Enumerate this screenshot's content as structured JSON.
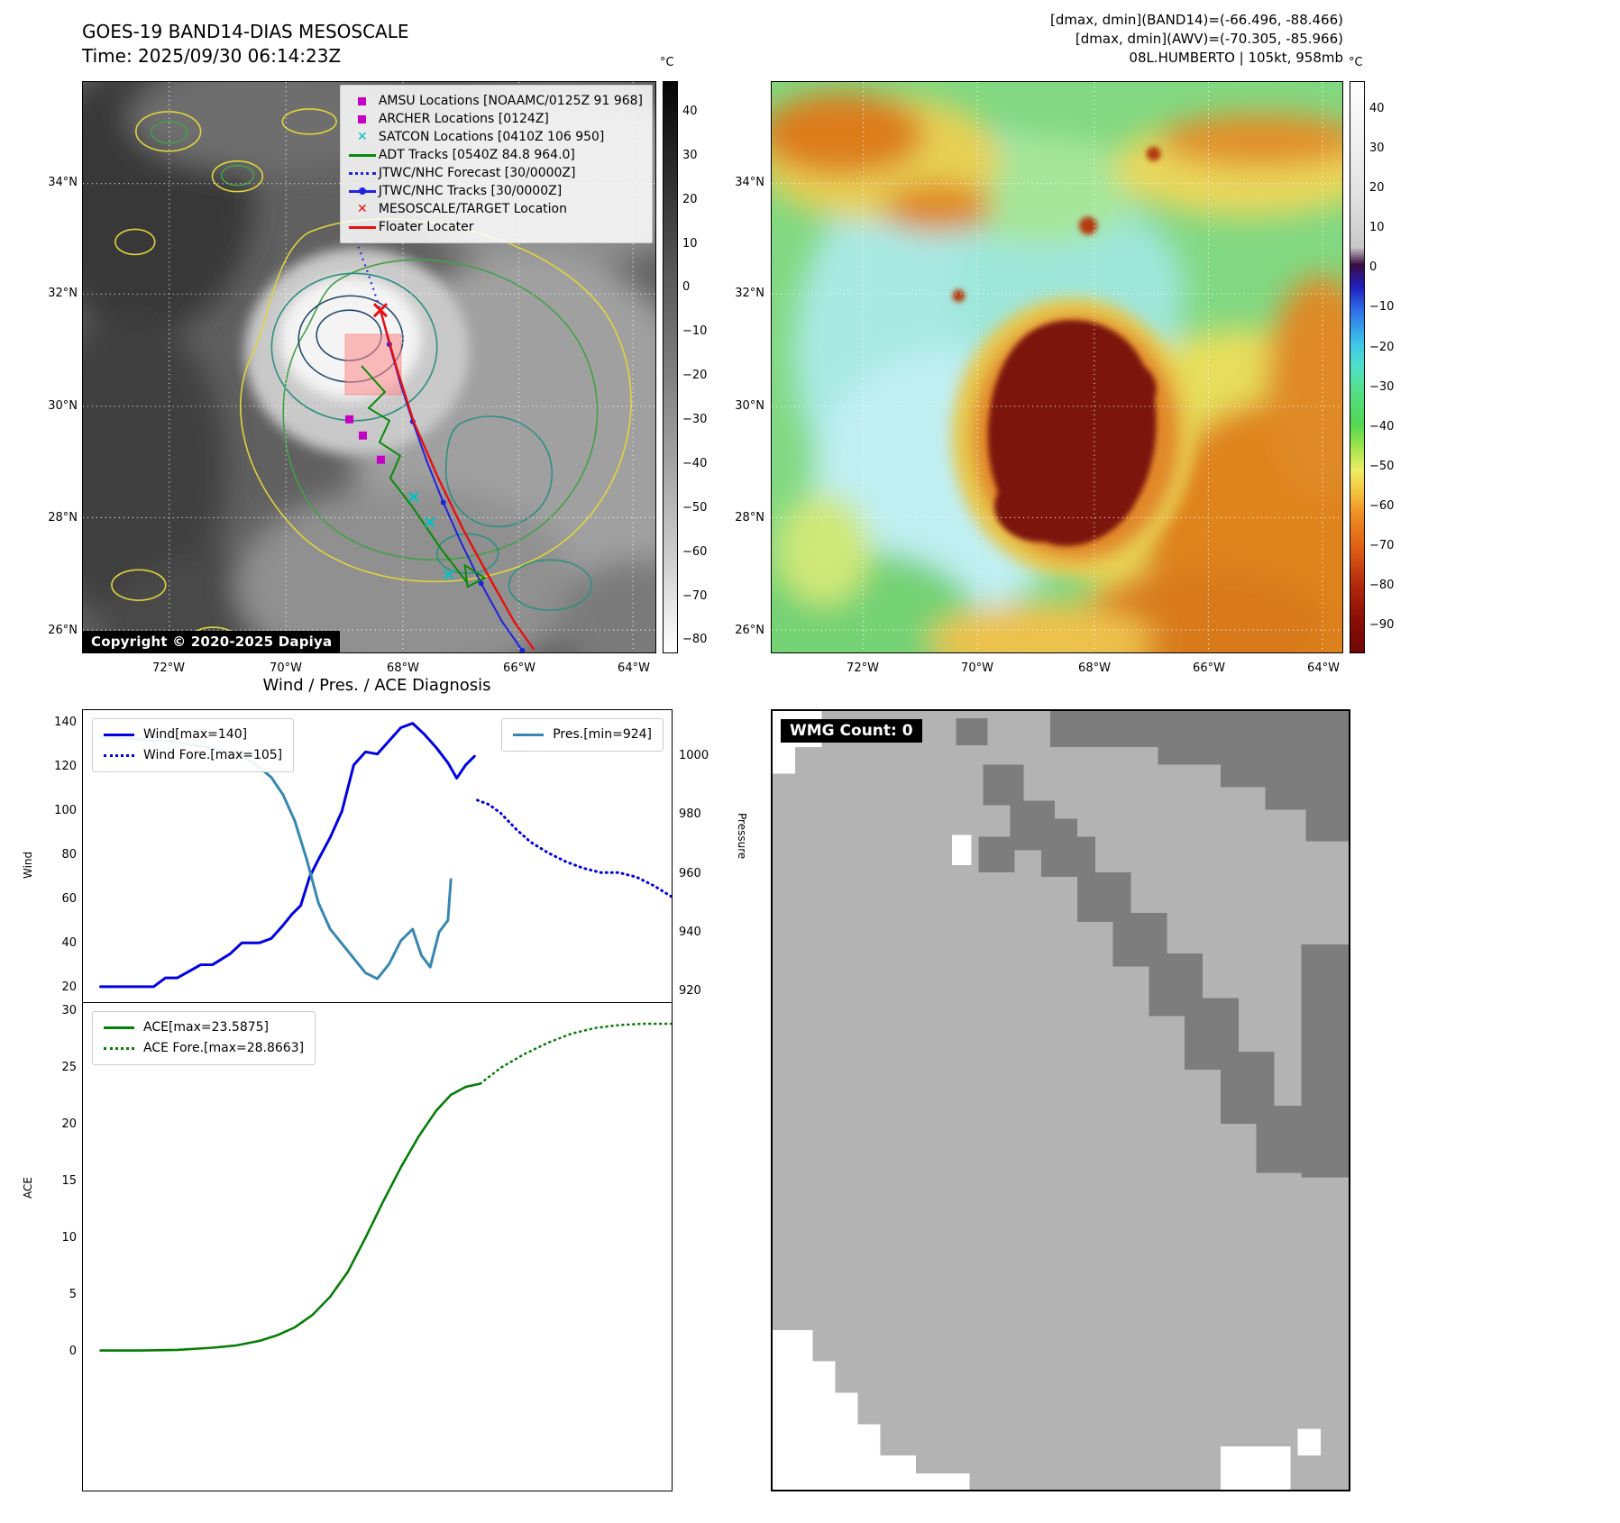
{
  "panel_band14": {
    "title_line1": "GOES-19 BAND14-DIAS MESOSCALE",
    "title_line2": "Time: 2025/09/30 06:14:23Z",
    "copyright": "Copyright © 2020-2025 Dapiya",
    "colorbar_unit": "°C",
    "colorbar_ticks": [
      "40",
      "30",
      "20",
      "10",
      "0",
      "−10",
      "−20",
      "−30",
      "−40",
      "−50",
      "−60",
      "−70",
      "−80"
    ],
    "lat_ticks": [
      "34°N",
      "32°N",
      "30°N",
      "28°N",
      "26°N"
    ],
    "lon_ticks": [
      "72°W",
      "70°W",
      "68°W",
      "66°W",
      "64°W"
    ],
    "legend": [
      {
        "marker": "magenta-square",
        "label": "AMSU Locations [NOAAMC/0125Z 91 968]"
      },
      {
        "marker": "magenta-square",
        "label": "ARCHER Locations [0124Z]"
      },
      {
        "marker": "cyan-x",
        "label": "SATCON Locations [0410Z 106 950]"
      },
      {
        "marker": "green-line",
        "label": "ADT Tracks [0540Z 84.8 964.0]"
      },
      {
        "marker": "blue-dotted-line",
        "label": "JTWC/NHC Forecast [30/0000Z]"
      },
      {
        "marker": "blue-line-dot",
        "label": "JTWC/NHC Tracks [30/0000Z]"
      },
      {
        "marker": "red-x",
        "label": "MESOSCALE/TARGET Location"
      },
      {
        "marker": "red-line",
        "label": "Floater Locater"
      }
    ]
  },
  "panel_awv": {
    "header_line1": "[dmax, dmin](BAND14)=(-66.496, -88.466)",
    "header_line2": "[dmax, dmin](AWV)=(-70.305, -85.966)",
    "header_line3": "08L.HUMBERTO | 105kt, 958mb",
    "colorbar_unit": "°C",
    "colorbar_ticks": [
      "40",
      "30",
      "20",
      "10",
      "0",
      "−10",
      "−20",
      "−30",
      "−40",
      "−50",
      "−60",
      "−70",
      "−80",
      "−90"
    ],
    "lat_ticks": [
      "34°N",
      "32°N",
      "30°N",
      "28°N",
      "26°N"
    ],
    "lon_ticks": [
      "72°W",
      "70°W",
      "68°W",
      "66°W",
      "64°W"
    ]
  },
  "panel_wmg": {
    "label": "WMG Count: 0"
  },
  "chart_data": [
    {
      "type": "line",
      "title": "Wind / Pres. / ACE Diagnosis",
      "ylabel_left": "Wind",
      "ylabel_right": "Pressure",
      "xlim": [
        0,
        100
      ],
      "ylim_left": [
        13,
        146
      ],
      "ylim_right": [
        916,
        1016
      ],
      "yticks_left": [
        140,
        120,
        100,
        80,
        60,
        40,
        20
      ],
      "yticks_right": [
        1000,
        980,
        960,
        940,
        920
      ],
      "grid": false,
      "legend_positions": [
        "upper-left",
        "upper-right"
      ],
      "series": [
        {
          "name": "Wind[max=140]",
          "color": "#0000e0",
          "style": "solid",
          "axis": "left",
          "width": 3,
          "x": [
            3,
            8,
            12,
            14,
            16,
            18,
            20,
            22,
            25,
            27,
            30,
            32,
            34,
            35.5,
            37,
            38.5,
            40,
            42,
            44,
            46,
            48,
            50,
            52,
            54,
            56,
            58,
            60,
            62,
            63.5,
            65,
            66.5
          ],
          "y": [
            20,
            20,
            20,
            24,
            24,
            27,
            30,
            30,
            35,
            40,
            40,
            42,
            48,
            53,
            57,
            70,
            78,
            88,
            100,
            121,
            127,
            126,
            132,
            138,
            140,
            135,
            129,
            122,
            115,
            121,
            125
          ]
        },
        {
          "name": "Wind Fore.[max=105]",
          "color": "#0000e0",
          "style": "dotted",
          "axis": "left",
          "width": 3,
          "x": [
            67,
            69,
            71,
            73.5,
            76,
            79,
            82,
            85,
            88,
            91,
            94,
            97,
            100
          ],
          "y": [
            105,
            103,
            99,
            92,
            86,
            81,
            77,
            74,
            72,
            72,
            70,
            66,
            61
          ]
        },
        {
          "name": "Pres.[min=924]",
          "color": "#3787b0",
          "style": "solid",
          "axis": "right",
          "width": 3,
          "x": [
            3,
            10,
            16,
            22,
            26,
            29,
            32,
            34,
            36,
            38,
            40,
            42,
            44,
            46,
            48,
            50,
            52,
            54,
            56,
            57.5,
            59,
            60.5,
            62,
            62.5
          ],
          "y": [
            1007,
            1006,
            1005,
            1003,
            1001,
            998,
            993,
            987,
            978,
            965,
            950,
            941,
            936,
            931,
            926,
            924,
            929,
            937,
            941,
            932,
            928,
            940,
            944,
            958
          ]
        }
      ]
    },
    {
      "type": "line",
      "ylabel_left": "ACE",
      "xlim": [
        0,
        100
      ],
      "ylim_left": [
        -12.3,
        30.7
      ],
      "yticks_left": [
        30,
        25,
        20,
        15,
        10,
        5,
        0
      ],
      "grid": false,
      "legend_positions": [
        "upper-left"
      ],
      "series": [
        {
          "name": "ACE[max=23.5875]",
          "color": "#067d06",
          "style": "solid",
          "axis": "left",
          "width": 2.6,
          "x": [
            3,
            10,
            16,
            22,
            26,
            30,
            33,
            36,
            39,
            42,
            45,
            48,
            51,
            54,
            57,
            60,
            62.5,
            65,
            67.5
          ],
          "y": [
            0.05,
            0.05,
            0.1,
            0.3,
            0.5,
            0.9,
            1.4,
            2.1,
            3.2,
            4.8,
            7.0,
            10.0,
            13.2,
            16.2,
            18.9,
            21.2,
            22.6,
            23.3,
            23.59
          ]
        },
        {
          "name": "ACE Fore.[max=28.8663]",
          "color": "#067d06",
          "style": "dotted",
          "axis": "left",
          "width": 2.6,
          "x": [
            67.5,
            71,
            75,
            79,
            83,
            87,
            91,
            95,
            100
          ],
          "y": [
            23.59,
            25.0,
            26.2,
            27.2,
            28.0,
            28.5,
            28.75,
            28.87,
            28.87
          ]
        }
      ]
    }
  ]
}
